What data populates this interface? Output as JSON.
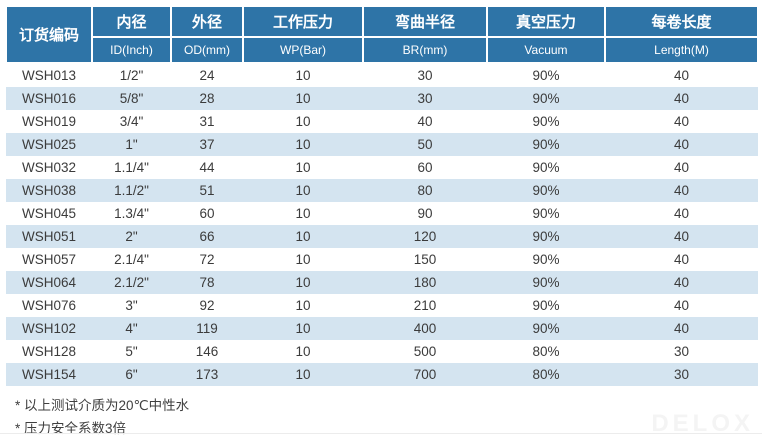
{
  "table": {
    "header": {
      "order_code": "订货编码",
      "columns": [
        {
          "cn": "内径",
          "en": "ID(Inch)"
        },
        {
          "cn": "外径",
          "en": "OD(mm)"
        },
        {
          "cn": "工作压力",
          "en": "WP(Bar)"
        },
        {
          "cn": "弯曲半径",
          "en": "BR(mm)"
        },
        {
          "cn": "真空压力",
          "en": "Vacuum"
        },
        {
          "cn": "每卷长度",
          "en": "Length(M)"
        }
      ]
    },
    "rows": [
      [
        "WSH013",
        "1/2\"",
        "24",
        "10",
        "30",
        "90%",
        "40"
      ],
      [
        "WSH016",
        "5/8\"",
        "28",
        "10",
        "30",
        "90%",
        "40"
      ],
      [
        "WSH019",
        "3/4\"",
        "31",
        "10",
        "40",
        "90%",
        "40"
      ],
      [
        "WSH025",
        "1\"",
        "37",
        "10",
        "50",
        "90%",
        "40"
      ],
      [
        "WSH032",
        "1.1/4\"",
        "44",
        "10",
        "60",
        "90%",
        "40"
      ],
      [
        "WSH038",
        "1.1/2\"",
        "51",
        "10",
        "80",
        "90%",
        "40"
      ],
      [
        "WSH045",
        "1.3/4\"",
        "60",
        "10",
        "90",
        "90%",
        "40"
      ],
      [
        "WSH051",
        "2\"",
        "66",
        "10",
        "120",
        "90%",
        "40"
      ],
      [
        "WSH057",
        "2.1/4\"",
        "72",
        "10",
        "150",
        "90%",
        "40"
      ],
      [
        "WSH064",
        "2.1/2\"",
        "78",
        "10",
        "180",
        "90%",
        "40"
      ],
      [
        "WSH076",
        "3\"",
        "92",
        "10",
        "210",
        "90%",
        "40"
      ],
      [
        "WSH102",
        "4\"",
        "119",
        "10",
        "400",
        "90%",
        "40"
      ],
      [
        "WSH128",
        "5\"",
        "146",
        "10",
        "500",
        "80%",
        "30"
      ],
      [
        "WSH154",
        "6\"",
        "173",
        "10",
        "700",
        "80%",
        "30"
      ]
    ]
  },
  "notes": [
    "* 以上测试介质为20℃中性水",
    "* 压力安全系数3倍"
  ],
  "watermark": "DELOX",
  "colors": {
    "header_bg": "#2e74a7",
    "stripe_bg": "#d4e4f0",
    "header_text": "#ffffff",
    "body_text": "#3b3b3b"
  }
}
